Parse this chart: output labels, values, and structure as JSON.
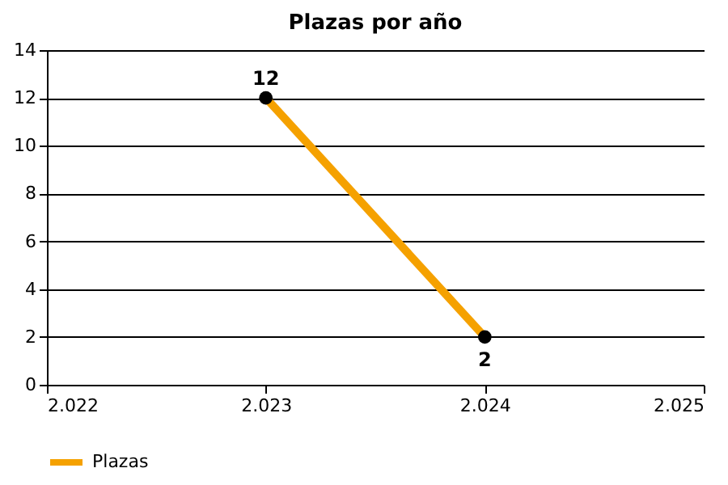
{
  "chart_data": {
    "type": "line",
    "title": "Plazas por año",
    "x": [
      2023,
      2024
    ],
    "series": [
      {
        "name": "Plazas",
        "color": "#f5a100",
        "values": [
          12,
          2
        ]
      }
    ],
    "xlim": [
      2022,
      2025
    ],
    "xticks": [
      {
        "value": 2022,
        "label": "2.022"
      },
      {
        "value": 2023,
        "label": "2.023"
      },
      {
        "value": 2024,
        "label": "2.024"
      },
      {
        "value": 2025,
        "label": "2.025"
      }
    ],
    "ylim": [
      0,
      14
    ],
    "yticks": [
      0,
      2,
      4,
      6,
      8,
      10,
      12,
      14
    ],
    "grid": "y",
    "legend": "bottom left",
    "marker": "circle",
    "line_style": "solid",
    "data_labels": true
  }
}
